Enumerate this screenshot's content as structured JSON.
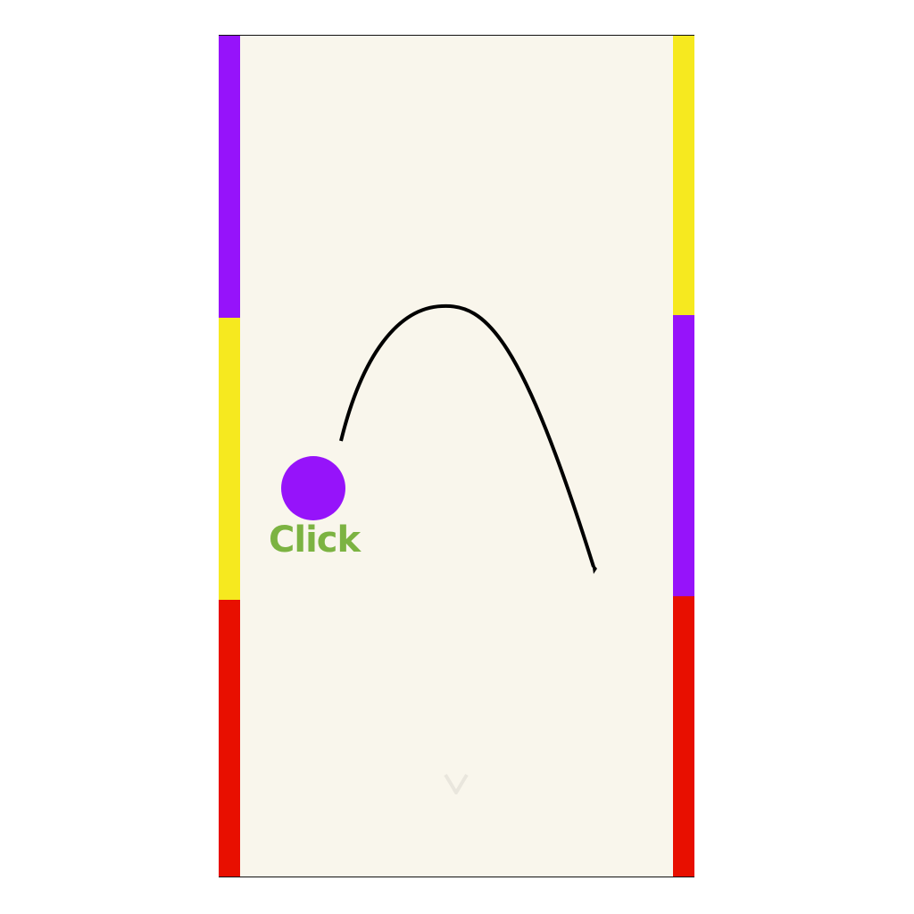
{
  "game": {
    "hint_label": "Click",
    "colors": {
      "background": "#f9f6ec",
      "ball": "#9613fa",
      "hint": "#7cb342",
      "trajectory": "#000000",
      "purple": "#9613fa",
      "yellow": "#f6e91f",
      "red": "#e80f00"
    },
    "left_wall": [
      {
        "color": "purple"
      },
      {
        "color": "yellow"
      },
      {
        "color": "red"
      }
    ],
    "right_wall": [
      {
        "color": "yellow"
      },
      {
        "color": "purple"
      },
      {
        "color": "red"
      }
    ]
  }
}
